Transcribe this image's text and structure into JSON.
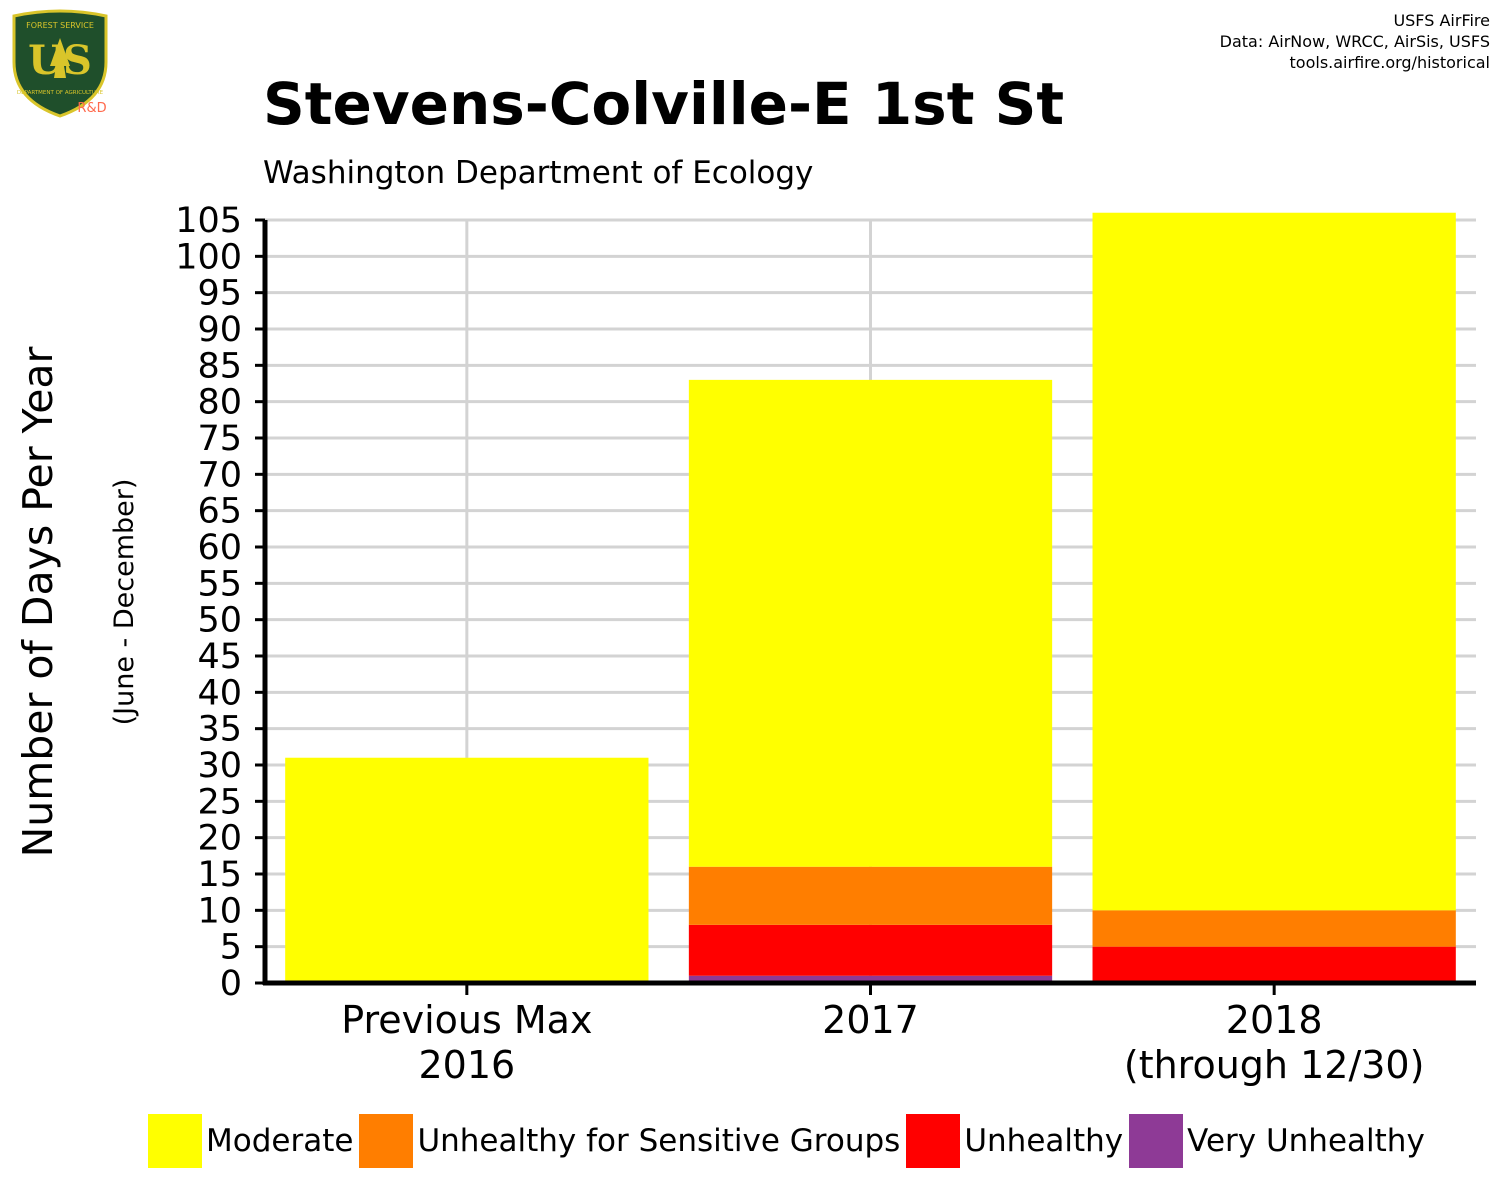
{
  "logo": {
    "top_text": "FOREST SERVICE",
    "main_text": "US",
    "bottom_text": "DEPARTMENT OF AGRICULTURE",
    "tag": "R&D",
    "colors": {
      "shield": "#1f4f2b",
      "gold": "#d9c52a",
      "tag": "#ff6a4d"
    }
  },
  "credits": [
    "USFS AirFire",
    "Data: AirNow, WRCC, AirSis, USFS",
    "tools.airfire.org/historical"
  ],
  "chart_data": {
    "type": "bar",
    "stacked": true,
    "title": "Stevens-Colville-E 1st St",
    "subtitle": "Washington Department of Ecology",
    "ylabel": "Number of Days Per Year",
    "ylabel_sub": "(June - December)",
    "xlabel": "",
    "ylim": [
      0,
      105
    ],
    "yticks": [
      0,
      5,
      10,
      15,
      20,
      25,
      30,
      35,
      40,
      45,
      50,
      55,
      60,
      65,
      70,
      75,
      80,
      85,
      90,
      95,
      100,
      105
    ],
    "grid": true,
    "categories": [
      [
        "Previous Max",
        "2016"
      ],
      [
        "2017"
      ],
      [
        "2018",
        "(through 12/30)"
      ]
    ],
    "series": [
      {
        "name": "Very Unhealthy",
        "color": "#8e3a96",
        "values": [
          0,
          1,
          0
        ]
      },
      {
        "name": "Unhealthy",
        "color": "#ff0000",
        "values": [
          0,
          7,
          5
        ]
      },
      {
        "name": "Unhealthy for Sensitive Groups",
        "color": "#ff7e00",
        "values": [
          0,
          8,
          5
        ]
      },
      {
        "name": "Moderate",
        "color": "#ffff00",
        "values": [
          31,
          67,
          96
        ]
      }
    ],
    "legend": {
      "placement": "bottom",
      "order": [
        "Moderate",
        "Unhealthy for Sensitive Groups",
        "Unhealthy",
        "Very Unhealthy"
      ]
    }
  }
}
